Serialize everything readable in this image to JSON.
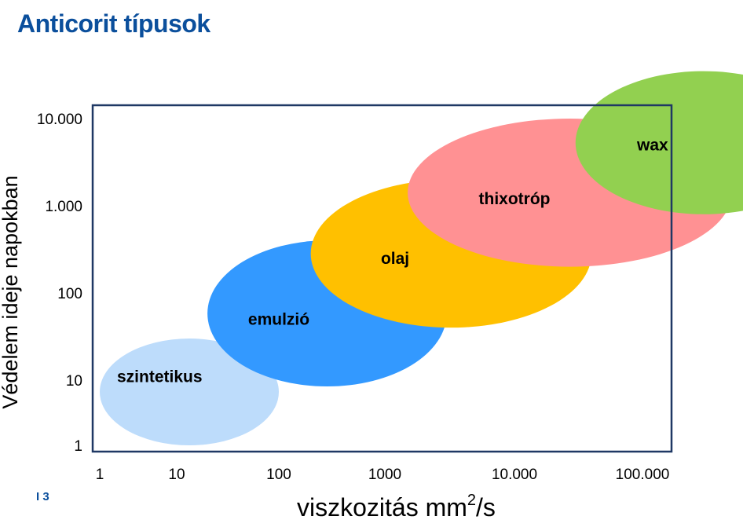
{
  "title": "Anticorit típusok",
  "page_number": "I 3",
  "chart_data": {
    "type": "scatter",
    "title": "",
    "ylabel": "Védelem ideje napokban",
    "xlabel": {
      "main": "viszkozitás mm",
      "superscript": "2",
      "suffix": "/s"
    },
    "x_scale": "log",
    "y_scale": "log",
    "xlim": [
      1,
      100000
    ],
    "ylim": [
      1,
      10000
    ],
    "grid": false,
    "legend": "none",
    "x_ticks": [
      {
        "value": 1,
        "label": "1"
      },
      {
        "value": 10,
        "label": "10"
      },
      {
        "value": 100,
        "label": "100"
      },
      {
        "value": 1000,
        "label": "1000"
      },
      {
        "value": 10000,
        "label": "10.000"
      },
      {
        "value": 100000,
        "label": "100.000"
      }
    ],
    "y_ticks": [
      {
        "value": 1,
        "label": "1"
      },
      {
        "value": 10,
        "label": "10"
      },
      {
        "value": 100,
        "label": "100"
      },
      {
        "value": 1000,
        "label": "1.000"
      },
      {
        "value": 10000,
        "label": "10.000"
      }
    ],
    "regions": [
      {
        "name": "szintetikus",
        "color": "#BDDCFB",
        "x_range": [
          1,
          100
        ],
        "y_range": [
          1,
          30
        ],
        "label_at": [
          6,
          11
        ]
      },
      {
        "name": "emulzió",
        "color": "#3399FF",
        "x_range": [
          20,
          3000
        ],
        "y_range": [
          8,
          400
        ],
        "label_at": [
          100,
          50
        ]
      },
      {
        "name": "olaj",
        "color": "#FFC000",
        "x_range": [
          200,
          40000
        ],
        "y_range": [
          40,
          2000
        ],
        "label_at": [
          1200,
          250
        ]
      },
      {
        "name": "thixotróp",
        "color": "#FF9193",
        "x_range": [
          1500,
          500000
        ],
        "y_range": [
          200,
          10000
        ],
        "label_at": [
          10000,
          1200
        ]
      },
      {
        "name": "wax",
        "color": "#92D050",
        "x_range": [
          30000,
          3000000
        ],
        "y_range": [
          800,
          35000
        ],
        "label_at": [
          120000,
          5000
        ]
      }
    ]
  }
}
